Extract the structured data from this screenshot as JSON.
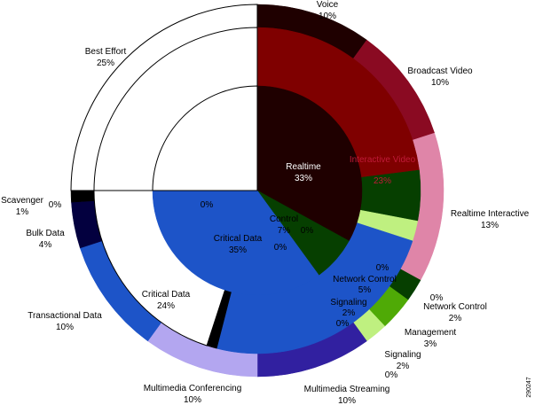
{
  "chart_data": {
    "type": "pie",
    "title": "",
    "figure_id": "290247",
    "rings": [
      {
        "name": "",
        "segments": [
          {
            "label": "Voice",
            "value": 10,
            "value_label": "10%",
            "color": "#1f0000"
          },
          {
            "label": "Broadcast Video",
            "value": 10,
            "value_label": "10%",
            "color": "#8a0a22"
          },
          {
            "label": "Realtime Interactive",
            "value": 13,
            "value_label": "13%",
            "color": "#df85a8"
          },
          {
            "label": "Network Control",
            "value": 2,
            "value_label": "2%",
            "color": "#063f00"
          },
          {
            "label": "Management",
            "value": 3,
            "value_label": "3%",
            "color": "#4faa06"
          },
          {
            "label": "Signaling",
            "value": 2,
            "value_label": "2%",
            "color": "#bff080"
          },
          {
            "label": "Multimedia Streaming",
            "value": 10,
            "value_label": "10%",
            "color": "#3120a0"
          },
          {
            "label": "Multimedia Conferencing",
            "value": 10,
            "value_label": "10%",
            "color": "#b3a6f0"
          },
          {
            "label": "Transactional Data",
            "value": 10,
            "value_label": "10%",
            "color": "#1d54c8"
          },
          {
            "label": "Bulk Data",
            "value": 4,
            "value_label": "4%",
            "color": "#03003f"
          },
          {
            "label": "Scavenger",
            "value": 1,
            "value_label": "1%",
            "color": "#000000"
          },
          {
            "label": "Best Effort",
            "value": 25,
            "value_label": "25%",
            "color": "#ffffff"
          }
        ]
      },
      {
        "name": "",
        "segments": [
          {
            "label": "Interactive Video",
            "value": 23,
            "value_label": "23%",
            "color": "#7f0000"
          },
          {
            "label": "Network Control",
            "value": 5,
            "value_label": "5%",
            "color": "#063f00"
          },
          {
            "label": "Signaling",
            "value": 2,
            "value_label": "2%",
            "color": "#bff080"
          },
          {
            "label": "Critical Data",
            "value": 24,
            "value_label": "24%",
            "color": "#1d54c8"
          },
          {
            "label": "",
            "value": 1,
            "value_label": "",
            "color": "#000000"
          },
          {
            "label": "",
            "value": 45,
            "value_label": "",
            "color": "#ffffff"
          }
        ]
      },
      {
        "name": "",
        "segments": [
          {
            "label": "Realtime",
            "value": 33,
            "value_label": "33%",
            "color": "#1f0000"
          },
          {
            "label": "Control",
            "value": 7,
            "value_label": "7%",
            "color": "#063f00"
          },
          {
            "label": "Critical Data",
            "value": 35,
            "value_label": "35%",
            "color": "#1d54c8"
          },
          {
            "label": "",
            "value": 25,
            "value_label": "",
            "color": "#ffffff"
          }
        ]
      }
    ],
    "zero_labels": [
      "0%",
      "0%",
      "0%",
      "0%",
      "0%",
      "0%",
      "0%",
      "0%"
    ]
  }
}
